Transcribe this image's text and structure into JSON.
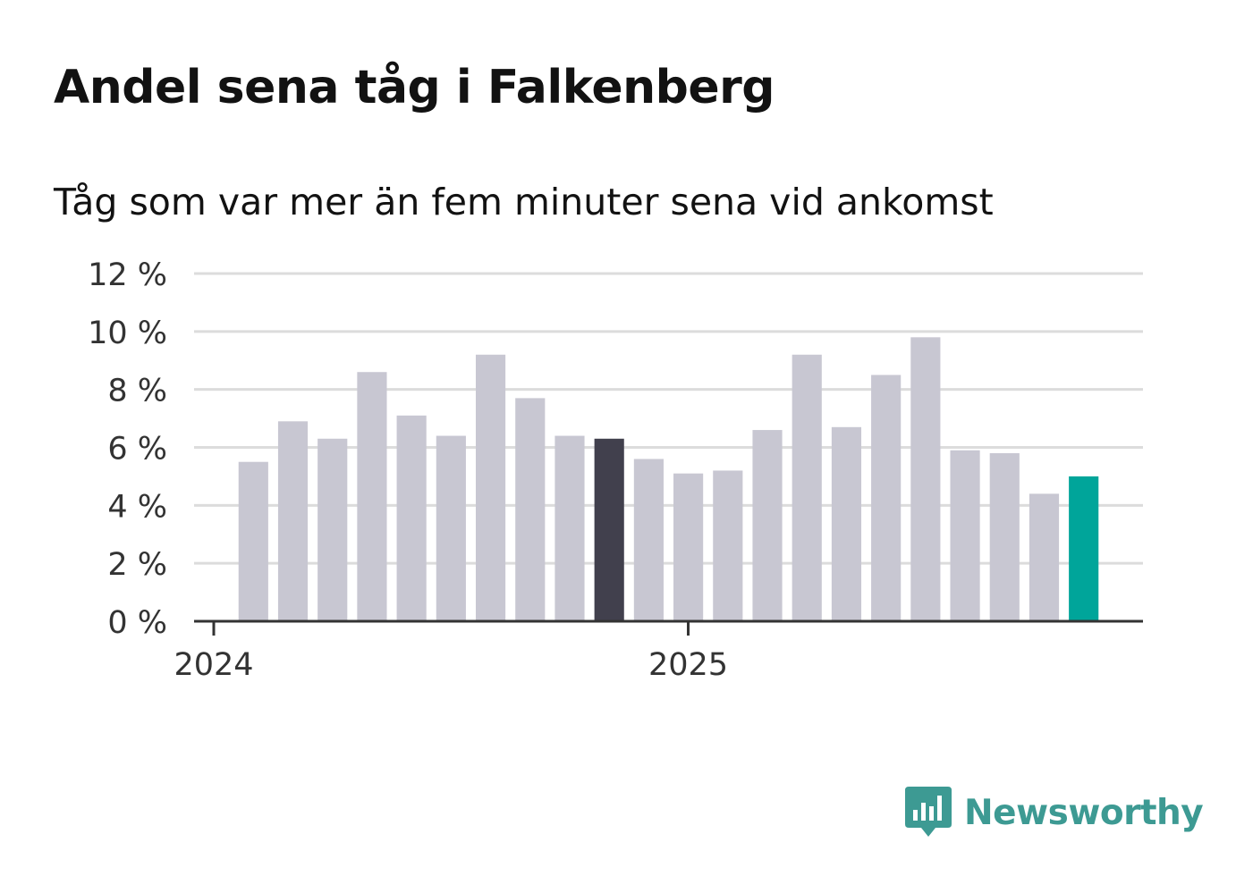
{
  "chart_data": {
    "type": "bar",
    "title": "Andel sena tåg i Falkenberg",
    "subtitle": "Tåg som var mer än fem minuter sena vid ankomst",
    "xlabel": "",
    "ylabel": "",
    "ylim": [
      0,
      12
    ],
    "y_ticks": [
      {
        "value": 0,
        "label": "0 %"
      },
      {
        "value": 2,
        "label": "2 %"
      },
      {
        "value": 4,
        "label": "4 %"
      },
      {
        "value": 6,
        "label": "6 %"
      },
      {
        "value": 8,
        "label": "8 %"
      },
      {
        "value": 10,
        "label": "10 %"
      },
      {
        "value": 12,
        "label": "12 %"
      }
    ],
    "x_ticks": [
      {
        "index": 0,
        "label": "2024"
      },
      {
        "index": 12,
        "label": "2025"
      }
    ],
    "categories": [
      "2024-01",
      "2024-02",
      "2024-03",
      "2024-04",
      "2024-05",
      "2024-06",
      "2024-07",
      "2024-08",
      "2024-09",
      "2024-10",
      "2024-11",
      "2024-12",
      "2025-01",
      "2025-02",
      "2025-03",
      "2025-04",
      "2025-05",
      "2025-06",
      "2025-07",
      "2025-08",
      "2025-09",
      "2025-10",
      "2025-11",
      "2025-12"
    ],
    "values": [
      null,
      5.5,
      6.9,
      6.3,
      8.6,
      7.1,
      6.4,
      9.2,
      7.7,
      6.4,
      6.3,
      5.6,
      5.1,
      5.2,
      6.6,
      9.2,
      6.7,
      8.5,
      9.8,
      5.9,
      5.8,
      4.4,
      5.0,
      null
    ],
    "grid": true,
    "colors": {
      "default": "#c8c7d2",
      "comparison": "#41404d",
      "latest": "#00a59a",
      "grid": "#dcdcdc",
      "axis": "#333333",
      "text": "#333333"
    },
    "highlight": {
      "comparison_index": 10,
      "latest_index": 22
    }
  },
  "brand": {
    "name": "Newsworthy",
    "icon": "newsworthy-logo-icon",
    "color": "#3d9a93"
  }
}
